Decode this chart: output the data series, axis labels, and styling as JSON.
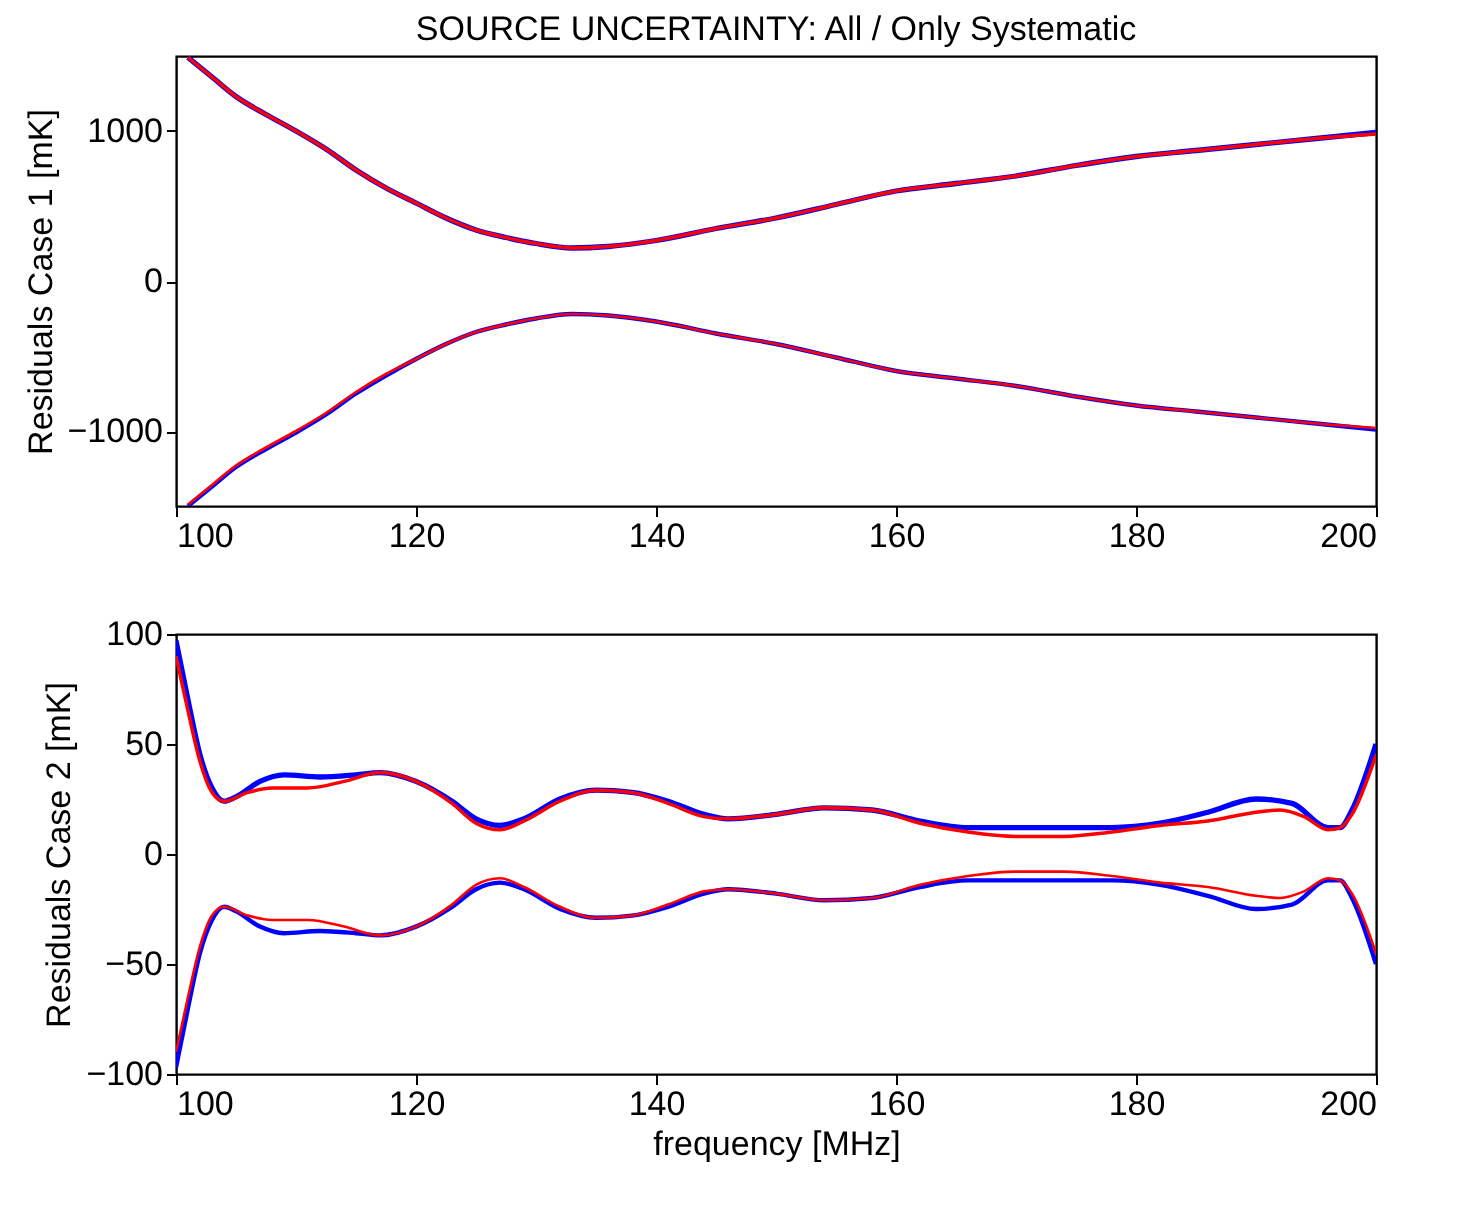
{
  "chart_data": [
    {
      "type": "line",
      "title": "SOURCE UNCERTAINTY: All / Only Systematic",
      "ylabel": "Residuals Case 1 [mK]",
      "x": [
        101,
        103,
        105,
        107.5,
        110,
        112.5,
        115,
        117.5,
        120,
        122.5,
        125,
        127.5,
        130,
        133,
        136,
        140,
        145,
        150,
        155,
        160,
        165,
        170,
        175,
        180,
        185,
        190,
        195,
        200
      ],
      "xlim": [
        100,
        200
      ],
      "xticks": [
        100,
        120,
        140,
        160,
        180,
        200
      ],
      "ylim": [
        -1500,
        1500
      ],
      "yticks": [
        -1000,
        0,
        1000
      ],
      "series": [
        {
          "color": "#0000ff",
          "values": [
            1490,
            1360,
            1230,
            1110,
            1000,
            880,
            740,
            620,
            520,
            420,
            340,
            290,
            250,
            220,
            230,
            270,
            350,
            420,
            510,
            600,
            650,
            700,
            770,
            830,
            870,
            910,
            950,
            990
          ]
        },
        {
          "color": "#0000ff",
          "values": [
            -1500,
            -1370,
            -1240,
            -1120,
            -1010,
            -890,
            -750,
            -630,
            -520,
            -420,
            -340,
            -290,
            -250,
            -220,
            -230,
            -270,
            -350,
            -420,
            -510,
            -600,
            -650,
            -700,
            -770,
            -830,
            -870,
            -910,
            -950,
            -990
          ]
        },
        {
          "color": "#ff0000",
          "values": [
            1490,
            1360,
            1230,
            1110,
            1000,
            880,
            740,
            620,
            520,
            420,
            340,
            290,
            250,
            220,
            230,
            270,
            350,
            420,
            510,
            600,
            650,
            700,
            770,
            830,
            870,
            910,
            950,
            980
          ]
        },
        {
          "color": "#ff0000",
          "values": [
            -1490,
            -1360,
            -1230,
            -1110,
            -1000,
            -880,
            -740,
            -620,
            -520,
            -420,
            -340,
            -290,
            -250,
            -220,
            -230,
            -270,
            -350,
            -420,
            -510,
            -600,
            -650,
            -700,
            -770,
            -830,
            -870,
            -910,
            -950,
            -980
          ]
        }
      ]
    },
    {
      "type": "line",
      "xlabel": "frequency [MHz]",
      "ylabel": "Residuals Case 2 [mK]",
      "xlim": [
        100,
        200
      ],
      "xticks": [
        100,
        120,
        140,
        160,
        180,
        200
      ],
      "ylim": [
        -100,
        100
      ],
      "yticks": [
        -100,
        -50,
        0,
        50,
        100
      ],
      "series": [
        {
          "color": "#0000ff",
          "x": [
            100,
            101,
            102,
            103,
            104,
            105,
            107,
            109,
            112,
            115,
            117,
            120,
            123,
            125,
            127,
            129,
            132,
            135,
            138,
            141,
            144,
            146,
            150,
            154,
            158,
            162,
            166,
            170,
            174,
            178,
            182,
            186,
            190,
            193,
            196,
            197,
            198,
            200
          ],
          "values": [
            97,
            70,
            45,
            30,
            24,
            26,
            33,
            36,
            35,
            36,
            37,
            33,
            24,
            16,
            13,
            16,
            25,
            29,
            28,
            24,
            18,
            16,
            18,
            21,
            20,
            15,
            12,
            12,
            12,
            12,
            14,
            19,
            25,
            23,
            12,
            12,
            20,
            50
          ]
        },
        {
          "color": "#0000ff",
          "x": [
            100,
            101,
            102,
            103,
            104,
            105,
            107,
            109,
            112,
            115,
            117,
            120,
            123,
            125,
            127,
            129,
            132,
            135,
            138,
            141,
            144,
            146,
            150,
            154,
            158,
            162,
            166,
            170,
            174,
            178,
            182,
            186,
            190,
            193,
            196,
            197,
            198,
            200
          ],
          "values": [
            -97,
            -70,
            -45,
            -30,
            -24,
            -26,
            -33,
            -36,
            -35,
            -36,
            -37,
            -33,
            -24,
            -16,
            -13,
            -16,
            -25,
            -29,
            -28,
            -24,
            -18,
            -16,
            -18,
            -21,
            -20,
            -15,
            -12,
            -12,
            -12,
            -12,
            -14,
            -19,
            -25,
            -23,
            -12,
            -12,
            -20,
            -50
          ]
        },
        {
          "color": "#ff0000",
          "x": [
            100,
            101,
            102,
            103,
            104,
            106,
            108,
            111,
            114,
            117,
            120,
            123,
            125,
            127,
            129,
            132,
            135,
            138,
            141,
            144,
            146,
            150,
            154,
            158,
            162,
            166,
            170,
            174,
            178,
            182,
            186,
            190,
            192,
            194,
            196,
            197,
            198,
            200
          ],
          "values": [
            90,
            65,
            42,
            28,
            24,
            28,
            30,
            30,
            33,
            37,
            33,
            23,
            14,
            11,
            15,
            24,
            29,
            28,
            23,
            17,
            16,
            18,
            21,
            20,
            14,
            10,
            8,
            8,
            10,
            13,
            15,
            19,
            20,
            17,
            11,
            12,
            18,
            45
          ]
        },
        {
          "color": "#ff0000",
          "x": [
            100,
            101,
            102,
            103,
            104,
            106,
            108,
            111,
            114,
            117,
            120,
            123,
            125,
            127,
            129,
            132,
            135,
            138,
            141,
            144,
            146,
            150,
            154,
            158,
            162,
            166,
            170,
            174,
            178,
            182,
            186,
            190,
            192,
            194,
            196,
            197,
            198,
            200
          ],
          "values": [
            -90,
            -65,
            -42,
            -28,
            -24,
            -28,
            -30,
            -30,
            -33,
            -37,
            -33,
            -23,
            -14,
            -11,
            -15,
            -24,
            -29,
            -28,
            -23,
            -17,
            -16,
            -18,
            -21,
            -20,
            -14,
            -10,
            -8,
            -8,
            -10,
            -13,
            -15,
            -19,
            -20,
            -17,
            -11,
            -12,
            -18,
            -45
          ]
        }
      ]
    }
  ]
}
